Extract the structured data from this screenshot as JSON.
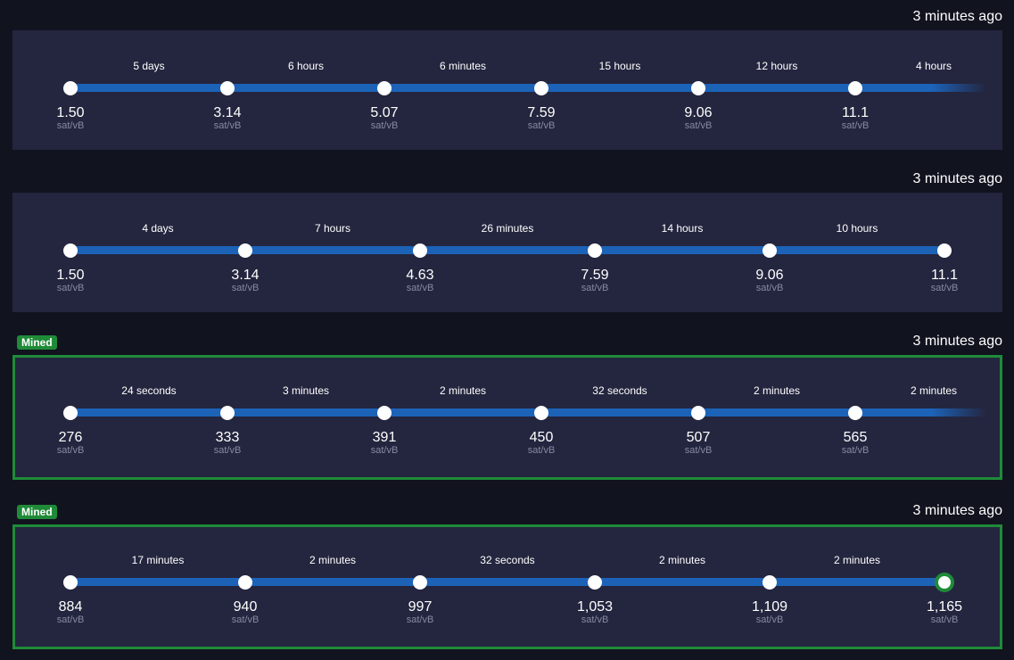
{
  "rows": [
    {
      "mined": false,
      "time_ago": "3 minutes ago",
      "fade_end": true,
      "rates": [
        "1.50",
        "3.14",
        "5.07",
        "7.59",
        "9.06",
        "11.1"
      ],
      "gaps": [
        "5 days",
        "6 hours",
        "6 minutes",
        "15 hours",
        "12 hours",
        "4 hours"
      ]
    },
    {
      "mined": false,
      "time_ago": "3 minutes ago",
      "fade_end": false,
      "rates": [
        "1.50",
        "3.14",
        "4.63",
        "7.59",
        "9.06",
        "11.1"
      ],
      "gaps": [
        "4 days",
        "7 hours",
        "26 minutes",
        "14 hours",
        "10 hours"
      ]
    },
    {
      "mined": true,
      "badge": "Mined",
      "time_ago": "3 minutes ago",
      "fade_end": true,
      "rates": [
        "276",
        "333",
        "391",
        "450",
        "507",
        "565"
      ],
      "gaps": [
        "24 seconds",
        "3 minutes",
        "2 minutes",
        "32 seconds",
        "2 minutes",
        "2 minutes"
      ]
    },
    {
      "mined": true,
      "badge": "Mined",
      "time_ago": "3 minutes ago",
      "fade_end": false,
      "rates": [
        "884",
        "940",
        "997",
        "1,053",
        "1,109",
        "1,165"
      ],
      "gaps": [
        "17 minutes",
        "2 minutes",
        "32 seconds",
        "2 minutes",
        "2 minutes"
      ]
    }
  ],
  "unit": "sat/vB",
  "colors": {
    "background": "#11131f",
    "panel": "#24263f",
    "track": "#1c63b8",
    "mined": "#1f8b38",
    "unit_text": "#868aa0"
  }
}
